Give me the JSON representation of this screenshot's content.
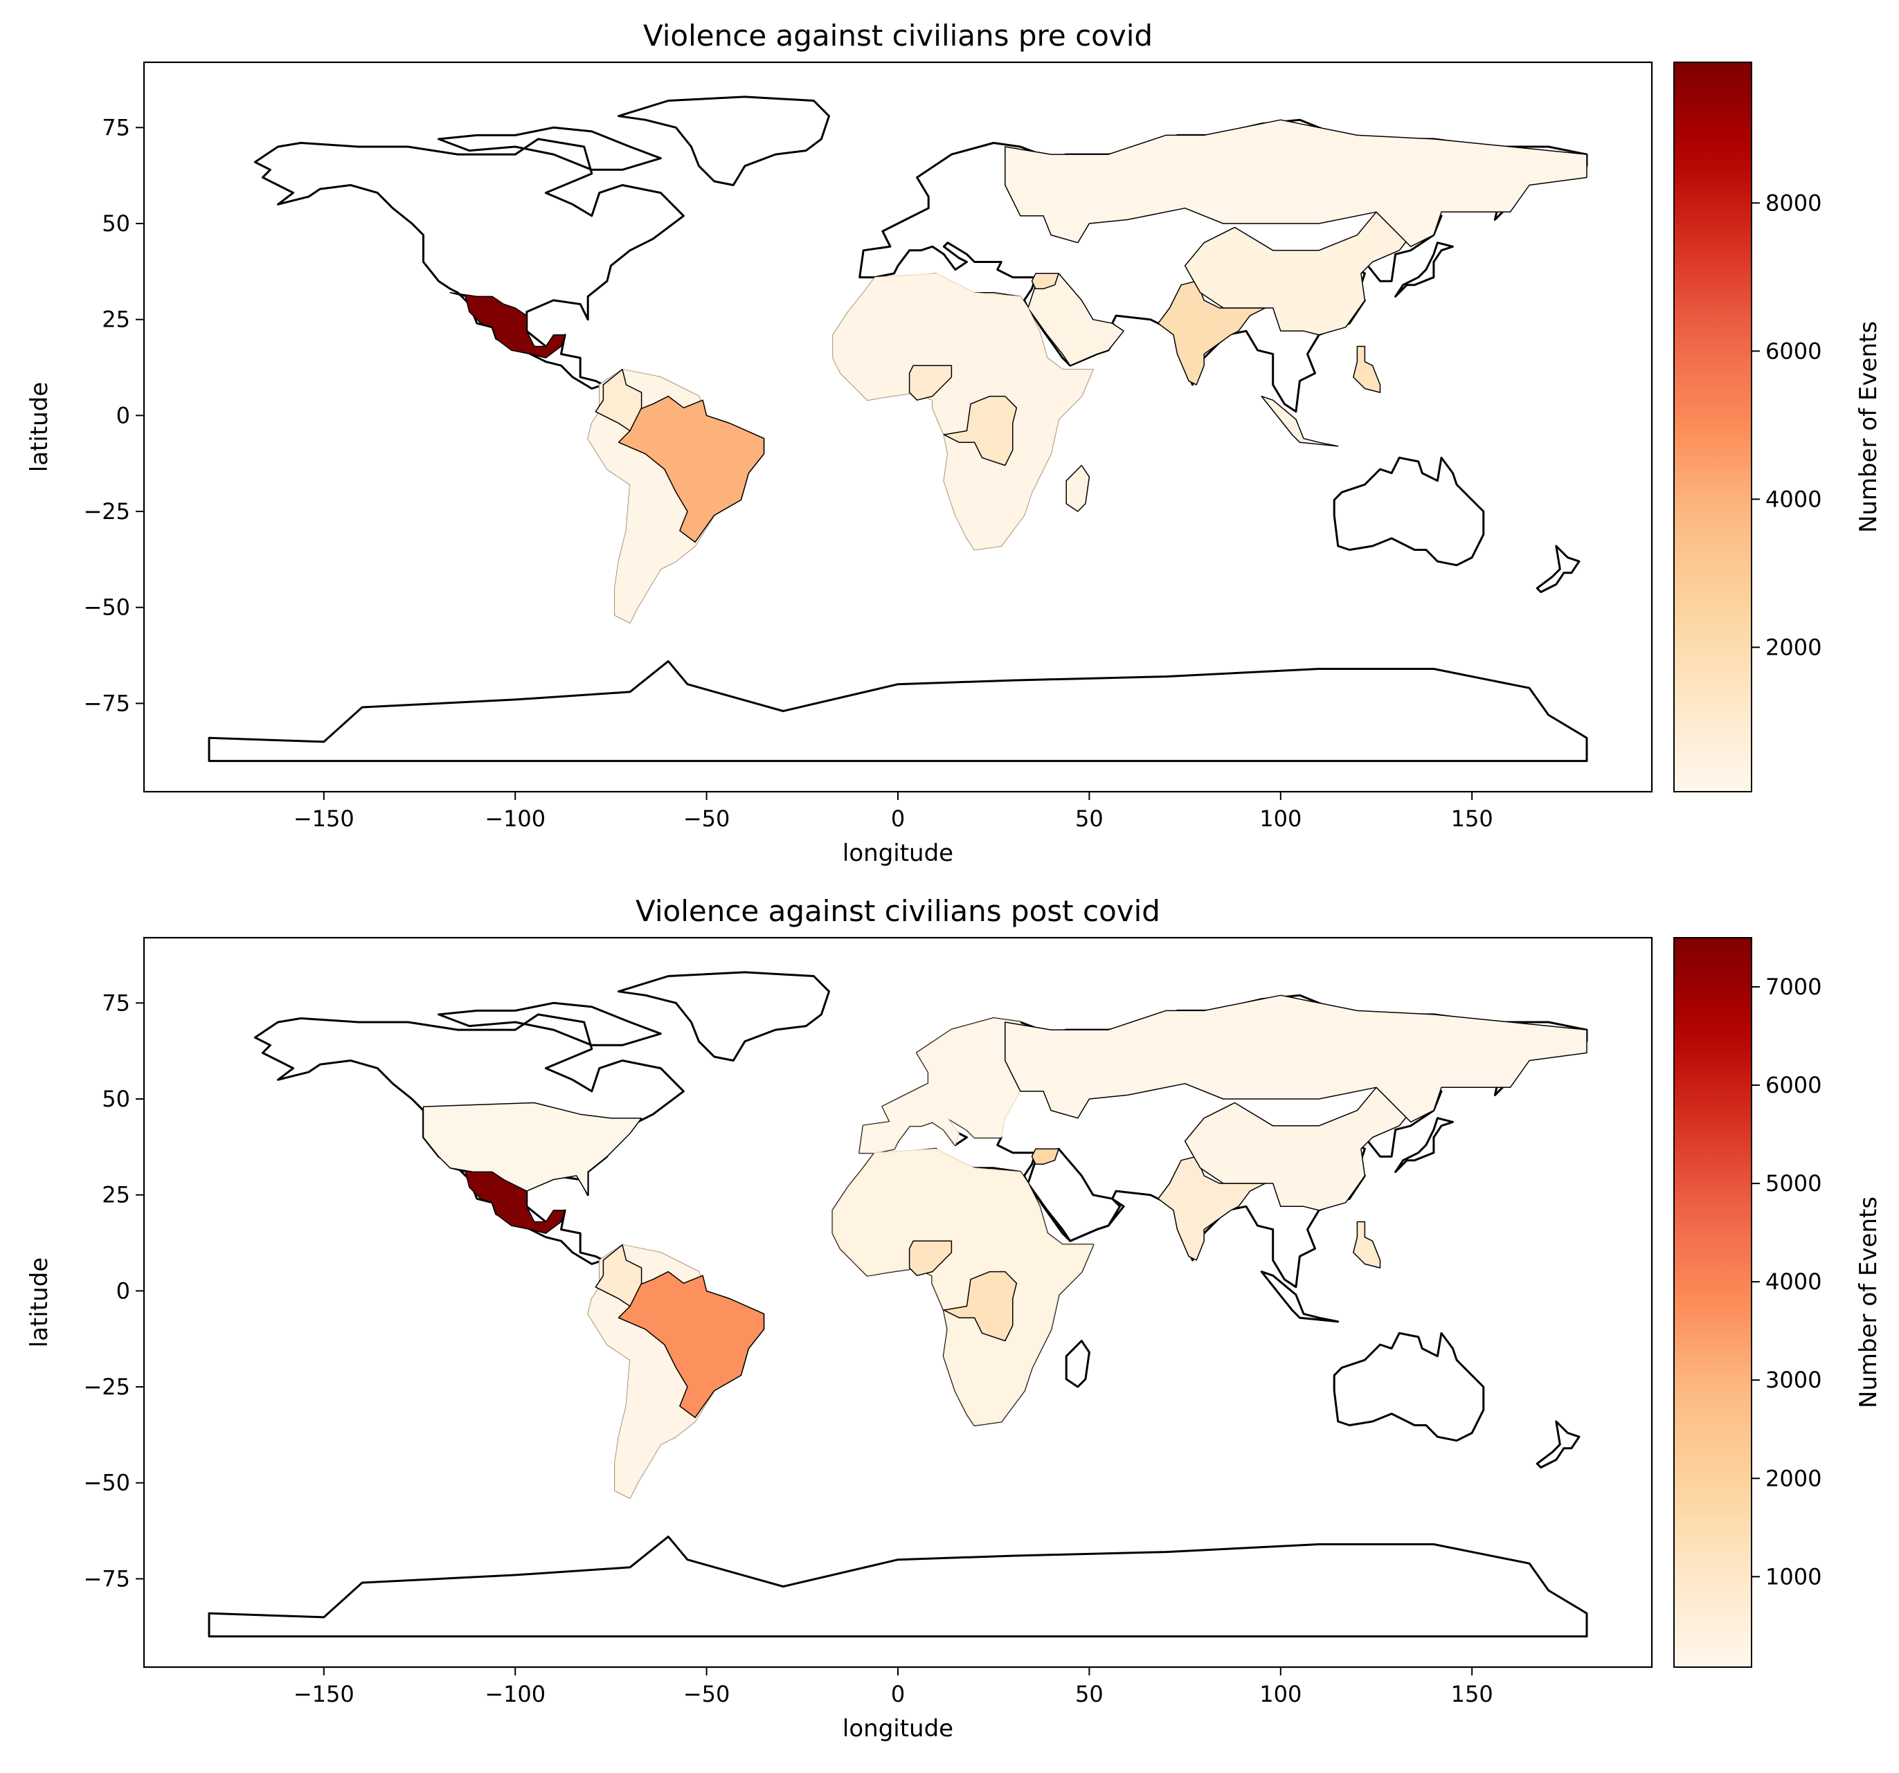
{
  "colors": {
    "cmap": "OrRd",
    "outline": "#000000",
    "background": "#ffffff"
  },
  "chart_data": [
    {
      "type": "choropleth",
      "title": "Violence against civilians pre covid",
      "xlabel": "longitude",
      "ylabel": "latitude",
      "xlim": [
        -197,
        197
      ],
      "ylim": [
        -98,
        92
      ],
      "xticks": [
        -150,
        -100,
        -50,
        0,
        50,
        100,
        150
      ],
      "yticks": [
        -75,
        -50,
        -25,
        0,
        25,
        50,
        75
      ],
      "colorbar": {
        "label": "Number of Events",
        "min": 50,
        "max": 9900,
        "ticks": [
          2000,
          4000,
          6000,
          8000
        ]
      },
      "regions": [
        {
          "name": "Mexico",
          "value": 9900
        },
        {
          "name": "Brazil",
          "value": 4000
        },
        {
          "name": "India",
          "value": 1900
        },
        {
          "name": "Philippines",
          "value": 1600
        },
        {
          "name": "DR Congo",
          "value": 1300
        },
        {
          "name": "Nigeria",
          "value": 1000
        },
        {
          "name": "Syria",
          "value": 1500
        },
        {
          "name": "Colombia",
          "value": 900
        },
        {
          "name": "China",
          "value": 500
        },
        {
          "name": "Russia",
          "value": 200
        },
        {
          "name": "Africa (other)",
          "value": 300
        },
        {
          "name": "South America (other)",
          "value": 250
        }
      ]
    },
    {
      "type": "choropleth",
      "title": "Violence against civilians post covid",
      "xlabel": "longitude",
      "ylabel": "latitude",
      "xlim": [
        -197,
        197
      ],
      "ylim": [
        -98,
        92
      ],
      "xticks": [
        -150,
        -100,
        -50,
        0,
        50,
        100,
        150
      ],
      "yticks": [
        -75,
        -50,
        -25,
        0,
        25,
        50,
        75
      ],
      "colorbar": {
        "label": "Number of Events",
        "min": 80,
        "max": 7500,
        "ticks": [
          1000,
          2000,
          3000,
          4000,
          5000,
          6000,
          7000
        ]
      },
      "regions": [
        {
          "name": "Mexico",
          "value": 7500
        },
        {
          "name": "Brazil",
          "value": 3700
        },
        {
          "name": "DR Congo",
          "value": 1300
        },
        {
          "name": "Nigeria",
          "value": 1200
        },
        {
          "name": "Syria",
          "value": 1800
        },
        {
          "name": "Philippines",
          "value": 900
        },
        {
          "name": "India",
          "value": 700
        },
        {
          "name": "Colombia",
          "value": 800
        },
        {
          "name": "China",
          "value": 200
        },
        {
          "name": "Russia",
          "value": 150
        },
        {
          "name": "United States",
          "value": 120
        },
        {
          "name": "Africa (other)",
          "value": 350
        },
        {
          "name": "South America (other)",
          "value": 250
        },
        {
          "name": "Europe (other)",
          "value": 150
        }
      ]
    }
  ]
}
